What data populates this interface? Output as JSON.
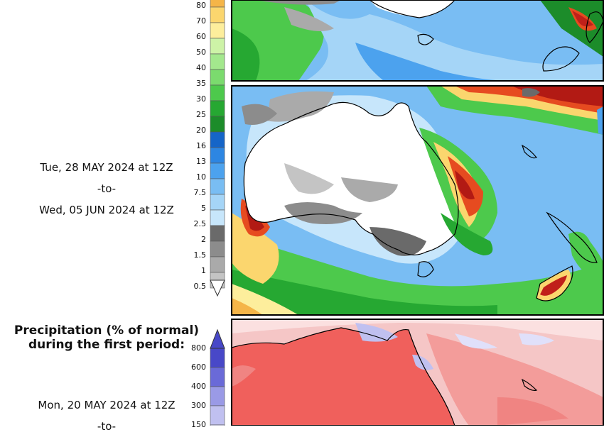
{
  "panels": {
    "accumulated_period_2": {
      "date_from": "Tue, 28 MAY 2024 at 12Z",
      "separator": "-to-",
      "date_to": "Wed, 05 JUN 2024 at 12Z"
    },
    "percent_normal_period_1": {
      "heading_line1": "Precipitation (% of normal)",
      "heading_line2": "during the first period:",
      "date_from": "Mon, 20 MAY 2024 at 12Z",
      "separator": "-to-"
    }
  },
  "precip_colorbar": {
    "labels": [
      "80",
      "70",
      "60",
      "50",
      "40",
      "35",
      "30",
      "25",
      "20",
      "16",
      "13",
      "10",
      "7.5",
      "5",
      "2.5",
      "2",
      "1.5",
      "1",
      "0.5"
    ],
    "colors": [
      "#f5b548",
      "#fbd66e",
      "#fdee9c",
      "#cdf3a7",
      "#a3e88d",
      "#7bdb6e",
      "#4dc94c",
      "#26a832",
      "#1c8c2a",
      "#1565c8",
      "#2d86e2",
      "#4ca2ee",
      "#79bdf3",
      "#a5d5f7",
      "#c7e6fb",
      "#6a6a6a",
      "#8c8c8c",
      "#aaaaaa",
      "#c4c4c4"
    ]
  },
  "percent_colorbar": {
    "labels": [
      "800",
      "600",
      "400",
      "300",
      "150"
    ],
    "colors": [
      "#4848c8",
      "#6a6ad8",
      "#9a9ae6",
      "#c0c0f0",
      "#e0e0fa"
    ]
  }
}
